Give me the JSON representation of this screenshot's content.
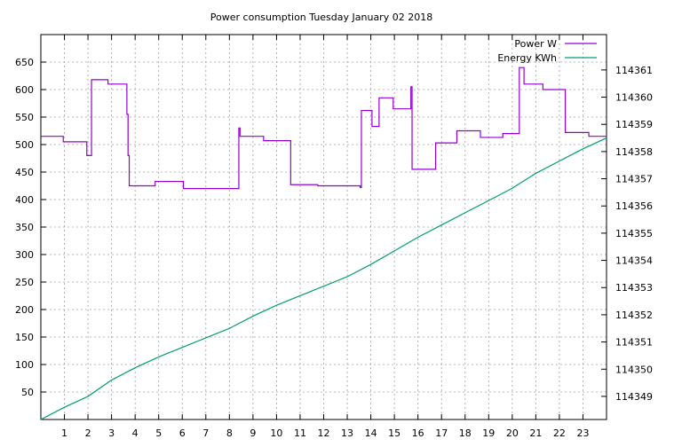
{
  "chart_data": {
    "type": "line",
    "title": "Power consumption Tuesday January 02 2018",
    "xlabel": "",
    "ylabel": "",
    "y2label": "",
    "xlim": [
      0,
      24
    ],
    "ylim": [
      0,
      700
    ],
    "y2lim": [
      114348.15,
      114362.3
    ],
    "grid": true,
    "legend_position": "top-right",
    "x_ticks": [
      1,
      2,
      3,
      4,
      5,
      6,
      7,
      8,
      9,
      10,
      11,
      12,
      13,
      14,
      15,
      16,
      17,
      18,
      19,
      20,
      21,
      22,
      23
    ],
    "y_ticks": [
      50,
      100,
      150,
      200,
      250,
      300,
      350,
      400,
      450,
      500,
      550,
      600,
      650
    ],
    "y2_ticks": [
      114349,
      114350,
      114351,
      114352,
      114353,
      114354,
      114355,
      114356,
      114357,
      114358,
      114359,
      114360,
      114361
    ],
    "series": [
      {
        "name": "Power W",
        "axis": "y1",
        "color": "#9400d3",
        "step": true,
        "points": [
          [
            0,
            515
          ],
          [
            0.95,
            515
          ],
          [
            0.95,
            505
          ],
          [
            1.95,
            505
          ],
          [
            1.95,
            480
          ],
          [
            2.15,
            480
          ],
          [
            2.15,
            618
          ],
          [
            2.85,
            618
          ],
          [
            2.85,
            610
          ],
          [
            3.65,
            610
          ],
          [
            3.65,
            555
          ],
          [
            3.7,
            555
          ],
          [
            3.7,
            480
          ],
          [
            3.75,
            480
          ],
          [
            3.75,
            425
          ],
          [
            4.85,
            425
          ],
          [
            4.85,
            433
          ],
          [
            6.05,
            433
          ],
          [
            6.05,
            420
          ],
          [
            8.4,
            420
          ],
          [
            8.4,
            530
          ],
          [
            8.45,
            530
          ],
          [
            8.45,
            515
          ],
          [
            9.45,
            515
          ],
          [
            9.45,
            507
          ],
          [
            10.6,
            507
          ],
          [
            10.6,
            427
          ],
          [
            11.75,
            427
          ],
          [
            11.75,
            425
          ],
          [
            13.55,
            425
          ],
          [
            13.55,
            422
          ],
          [
            13.6,
            422
          ],
          [
            13.6,
            562
          ],
          [
            14.05,
            562
          ],
          [
            14.05,
            533
          ],
          [
            14.35,
            533
          ],
          [
            14.35,
            585
          ],
          [
            14.95,
            585
          ],
          [
            14.95,
            565
          ],
          [
            15.7,
            565
          ],
          [
            15.7,
            605
          ],
          [
            15.75,
            605
          ],
          [
            15.75,
            455
          ],
          [
            16.75,
            455
          ],
          [
            16.75,
            503
          ],
          [
            17.65,
            503
          ],
          [
            17.65,
            525
          ],
          [
            18.65,
            525
          ],
          [
            18.65,
            513
          ],
          [
            19.6,
            513
          ],
          [
            19.6,
            520
          ],
          [
            20.3,
            520
          ],
          [
            20.3,
            640
          ],
          [
            20.5,
            640
          ],
          [
            20.5,
            610
          ],
          [
            21.3,
            610
          ],
          [
            21.3,
            600
          ],
          [
            22.25,
            600
          ],
          [
            22.25,
            522
          ],
          [
            23.25,
            522
          ],
          [
            23.25,
            515
          ],
          [
            24,
            515
          ]
        ]
      },
      {
        "name": "Energy KWh",
        "axis": "y2",
        "color": "#009e73",
        "step": false,
        "points": [
          [
            0,
            114348.15
          ],
          [
            1,
            114348.6
          ],
          [
            2,
            114349.0
          ],
          [
            3,
            114349.6
          ],
          [
            4,
            114350.05
          ],
          [
            5,
            114350.45
          ],
          [
            6,
            114350.8
          ],
          [
            7,
            114351.15
          ],
          [
            8,
            114351.5
          ],
          [
            9,
            114351.95
          ],
          [
            10,
            114352.35
          ],
          [
            11,
            114352.7
          ],
          [
            12,
            114353.05
          ],
          [
            13,
            114353.4
          ],
          [
            14,
            114353.85
          ],
          [
            15,
            114354.35
          ],
          [
            16,
            114354.85
          ],
          [
            17,
            114355.3
          ],
          [
            18,
            114355.75
          ],
          [
            19,
            114356.2
          ],
          [
            20,
            114356.65
          ],
          [
            21,
            114357.2
          ],
          [
            22,
            114357.65
          ],
          [
            23,
            114358.1
          ],
          [
            24,
            114358.5
          ]
        ]
      }
    ]
  }
}
